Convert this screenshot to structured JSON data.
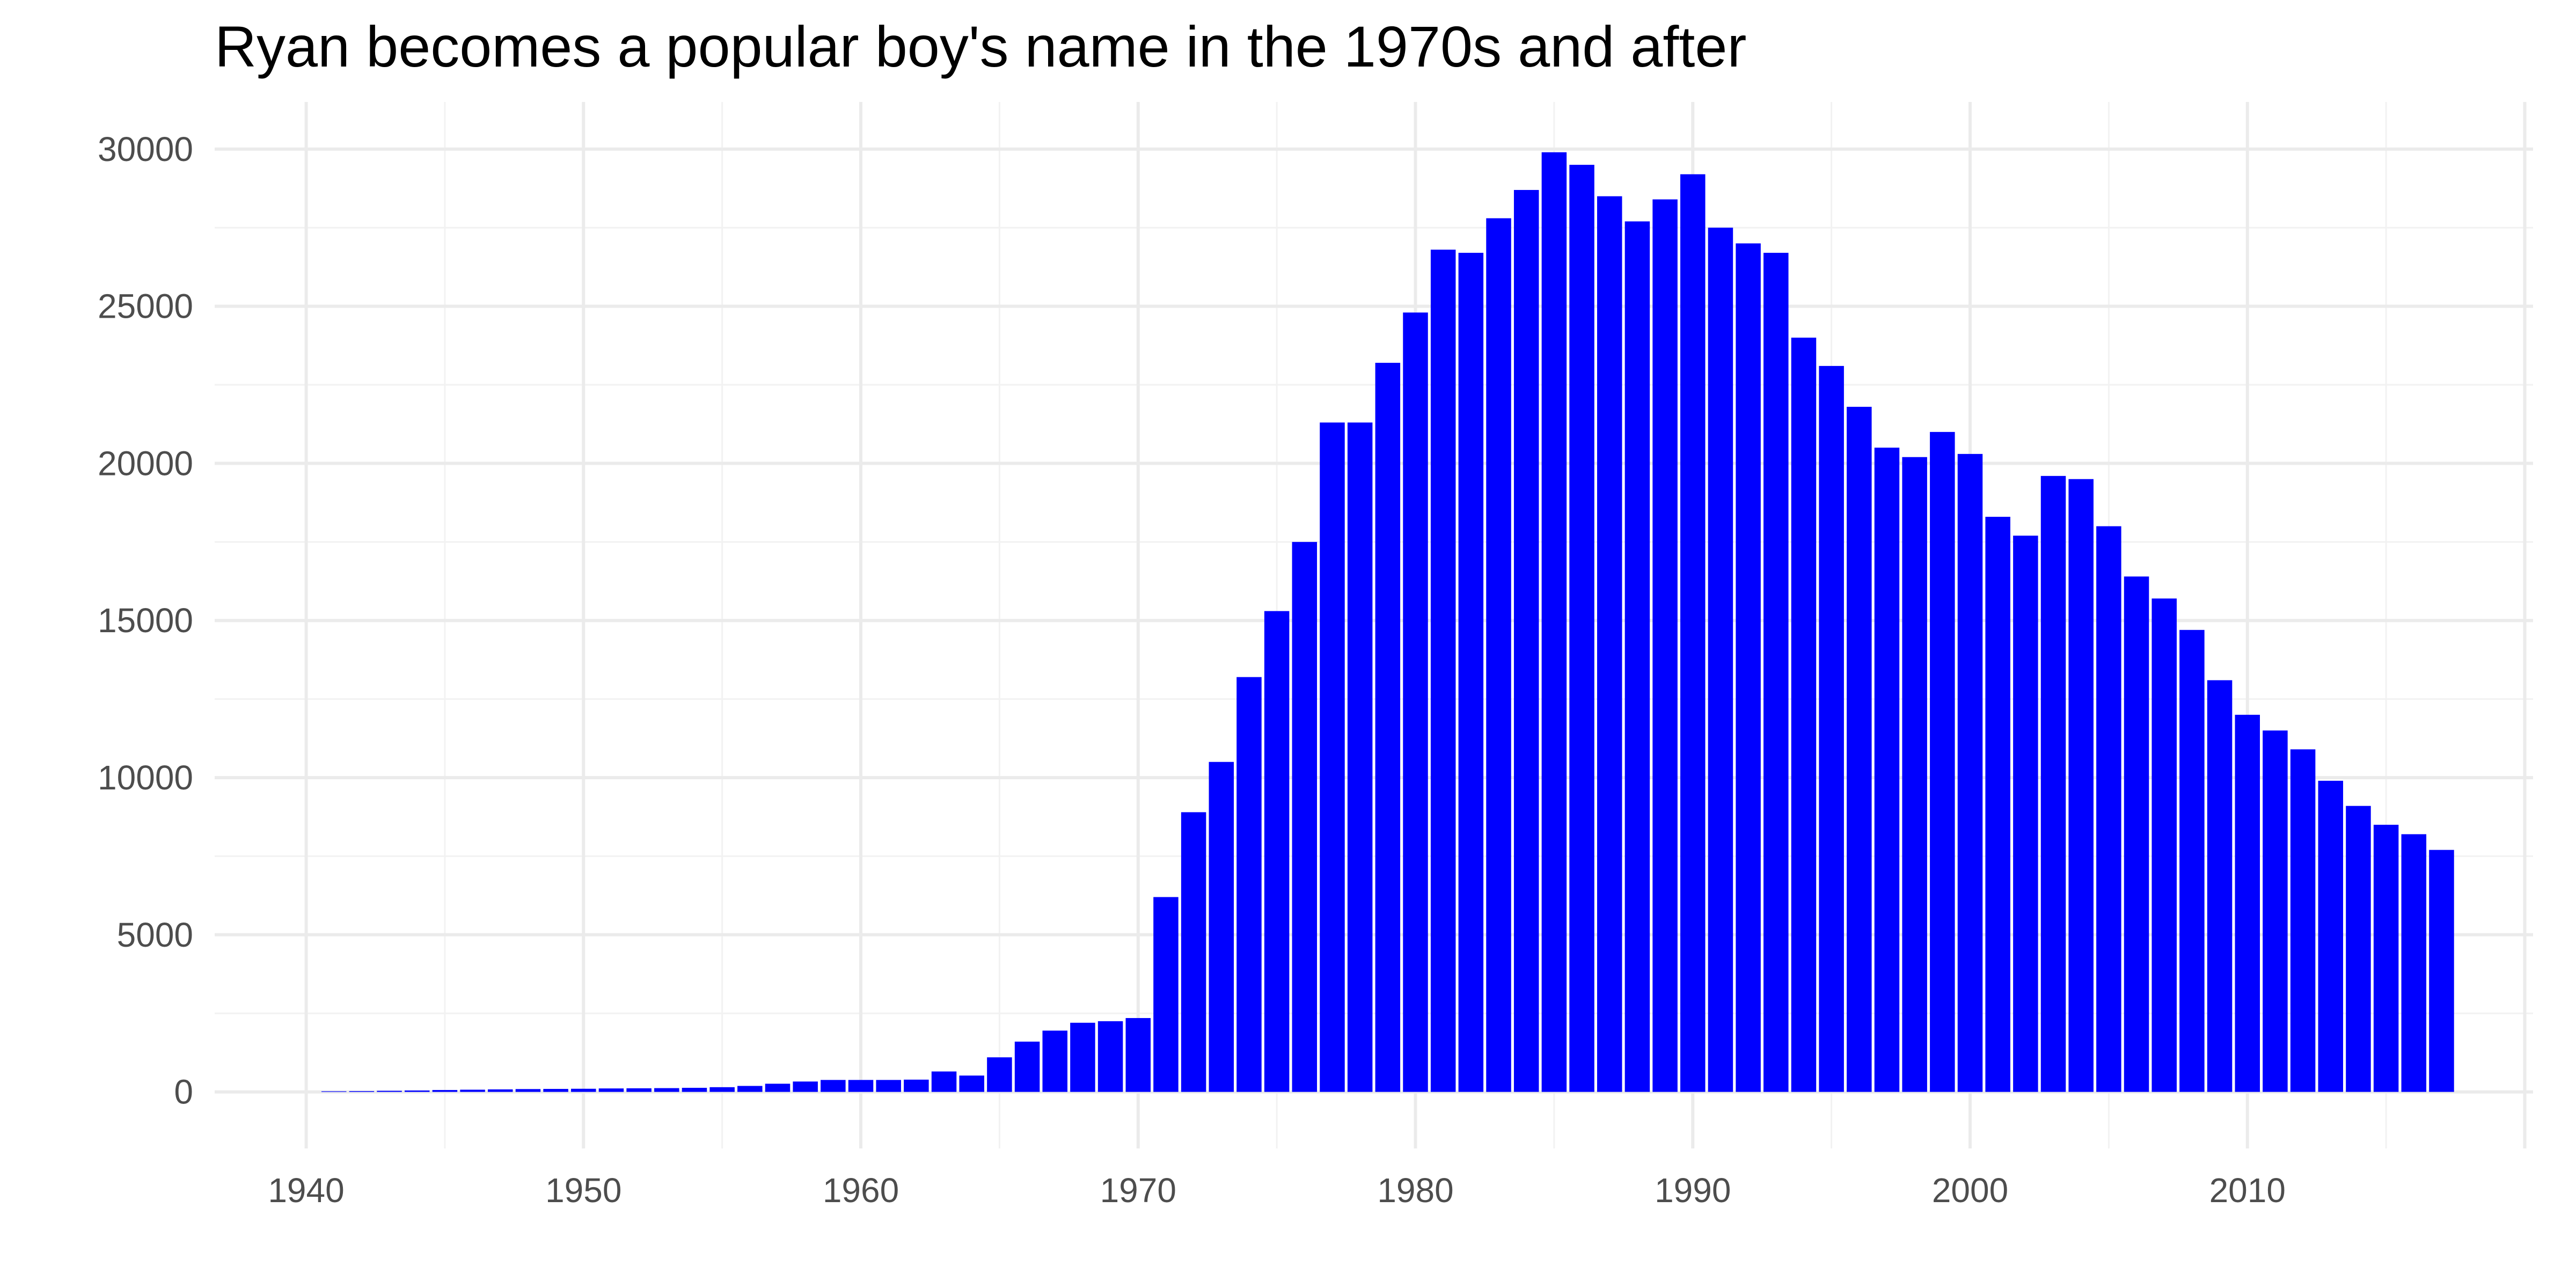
{
  "chart_data": {
    "type": "bar",
    "title": "Ryan becomes a popular boy's name in the 1970s and after",
    "xlabel": "",
    "ylabel": "",
    "x": [
      1941,
      1942,
      1943,
      1944,
      1945,
      1946,
      1947,
      1948,
      1949,
      1950,
      1951,
      1952,
      1953,
      1954,
      1955,
      1956,
      1957,
      1958,
      1959,
      1960,
      1961,
      1962,
      1963,
      1964,
      1965,
      1966,
      1967,
      1968,
      1969,
      1970,
      1971,
      1972,
      1973,
      1974,
      1975,
      1976,
      1977,
      1978,
      1979,
      1980,
      1981,
      1982,
      1983,
      1984,
      1985,
      1986,
      1987,
      1988,
      1989,
      1990,
      1991,
      1992,
      1993,
      1994,
      1995,
      1996,
      1997,
      1998,
      1999,
      2000,
      2001,
      2002,
      2003,
      2004,
      2005,
      2006,
      2007,
      2008,
      2009,
      2010,
      2011,
      2012,
      2013,
      2014,
      2015,
      2016,
      2017
    ],
    "values": [
      20,
      25,
      35,
      45,
      60,
      70,
      80,
      90,
      95,
      100,
      110,
      115,
      120,
      130,
      150,
      190,
      260,
      330,
      380,
      380,
      380,
      390,
      650,
      520,
      1100,
      1600,
      1950,
      2200,
      2250,
      2350,
      6200,
      8900,
      10500,
      13200,
      15300,
      17500,
      21300,
      21300,
      23200,
      24800,
      26800,
      26700,
      27800,
      28700,
      29900,
      29500,
      28500,
      27700,
      28400,
      29200,
      27500,
      27000,
      26700,
      24000,
      23100,
      21800,
      20500,
      20200,
      21000,
      20300,
      18300,
      17700,
      19600,
      19500,
      18000,
      16400,
      15700,
      14700,
      13100,
      12000,
      11500,
      10900,
      9900,
      9100,
      8500,
      8200,
      7700
    ],
    "xlim": [
      1936.7,
      2020.3
    ],
    "ylim": [
      -1800,
      31500
    ],
    "x_ticks": [
      "1940",
      "1950",
      "1960",
      "1970",
      "1980",
      "1990",
      "2000",
      "2010"
    ],
    "y_ticks": [
      "0",
      "5000",
      "10000",
      "15000",
      "20000",
      "25000",
      "30000"
    ],
    "grid": true,
    "legend": "none",
    "colors": {
      "bar": "#0000ff",
      "grid_major": "#ebebeb",
      "grid_minor": "#f2f2f2",
      "tick_text": "#4d4d4d",
      "title_text": "#000000"
    }
  }
}
